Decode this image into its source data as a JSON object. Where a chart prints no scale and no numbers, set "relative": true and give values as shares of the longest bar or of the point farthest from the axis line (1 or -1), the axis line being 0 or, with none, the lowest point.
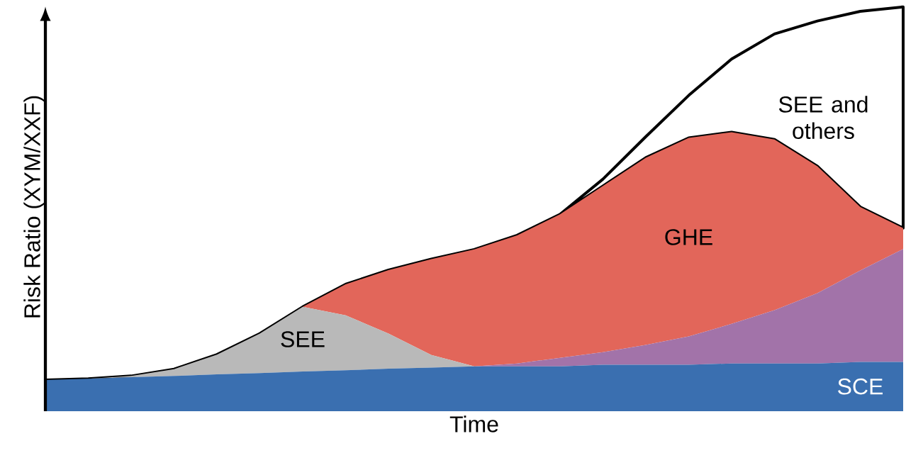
{
  "chart_data": {
    "type": "area",
    "stacked": true,
    "relative": true,
    "xlabel": "Time",
    "ylabel": "Risk Ratio (XYM/XXF)",
    "categories": [
      null,
      null,
      null,
      null,
      null,
      null,
      null,
      null,
      null,
      null,
      null,
      null,
      null,
      null,
      null,
      null,
      null,
      null,
      null,
      null,
      null
    ],
    "series": [
      {
        "name": "SCE",
        "color": "#3a6fb0",
        "values": [
          0.077,
          0.08,
          0.084,
          0.087,
          0.091,
          0.094,
          0.098,
          0.101,
          0.105,
          0.108,
          0.111,
          0.111,
          0.111,
          0.115,
          0.115,
          0.115,
          0.118,
          0.118,
          0.118,
          0.122,
          0.122
        ]
      },
      {
        "name": "SEE",
        "color": "#b9b9b9",
        "values": [
          0,
          0,
          0.003,
          0.017,
          0.049,
          0.098,
          0.16,
          0.136,
          0.087,
          0.031,
          0,
          0,
          0,
          0,
          0,
          0,
          0,
          0,
          0,
          0,
          0
        ]
      },
      {
        "color": "#a273a9",
        "values": [
          0,
          0,
          0,
          0,
          0,
          0,
          0,
          0,
          0,
          0,
          0,
          0.007,
          0.021,
          0.031,
          0.049,
          0.07,
          0.098,
          0.132,
          0.174,
          0.226,
          0.279
        ]
      },
      {
        "name": "GHE",
        "color": "#e2665a",
        "values": [
          0,
          0,
          0,
          0,
          0,
          0,
          0,
          0.077,
          0.157,
          0.237,
          0.289,
          0.317,
          0.355,
          0.411,
          0.463,
          0.491,
          0.474,
          0.422,
          0.314,
          0.157,
          0.052
        ]
      },
      {
        "name": "SEE and others",
        "color": "#ffffff",
        "values": [
          0,
          0,
          0,
          0,
          0,
          0,
          0,
          0,
          0,
          0,
          0,
          0,
          0,
          0.017,
          0.052,
          0.105,
          0.181,
          0.261,
          0.359,
          0.484,
          0.547
        ]
      }
    ]
  }
}
